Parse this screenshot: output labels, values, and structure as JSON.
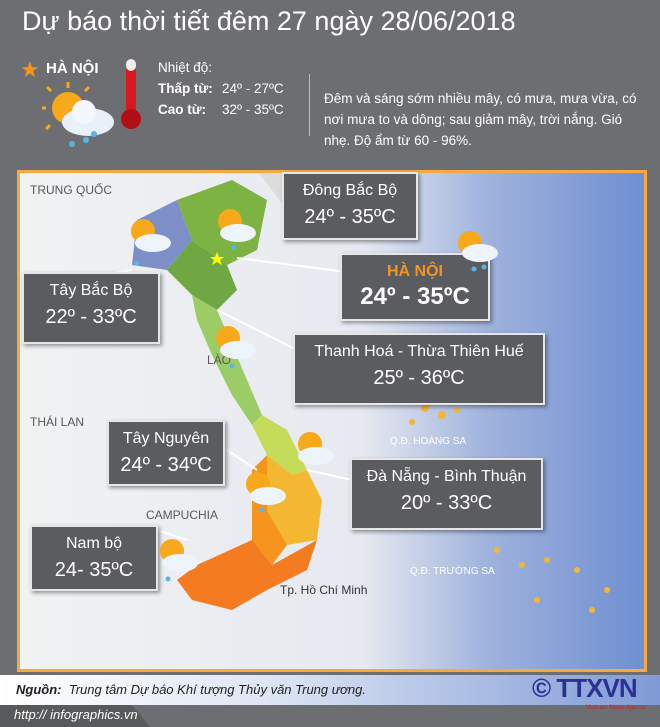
{
  "title": "Dự báo thời tiết đêm 27 ngày 28/06/2018",
  "hanoi_header": {
    "name": "HÀ NỘI",
    "temp_heading": "Nhiệt độ:",
    "low_label": "Thấp từ:",
    "low_value": "24º - 27ºC",
    "high_label": "Cao từ:",
    "high_value": "32º - 35ºC",
    "description": "Đêm và sáng sớm nhiều mây, có mưa, mưa vừa, có nơi mưa to và dông; sau giảm mây, trời nắng. Gió nhẹ. Độ ẩm từ 60 - 96%.",
    "icons": [
      "star-icon",
      "sun-cloud-rain-icon",
      "thermometer-icon"
    ]
  },
  "regions": [
    {
      "name": "Đông Bắc Bộ",
      "temp": "24º - 35ºC"
    },
    {
      "name": "HÀ NỘI",
      "temp": "24º - 35ºC"
    },
    {
      "name": "Tây Bắc Bộ",
      "temp": "22º - 33ºC"
    },
    {
      "name": "Thanh Hoá - Thừa Thiên Huế",
      "temp": "25º - 36ºC"
    },
    {
      "name": "Tây Nguyên",
      "temp": "24º - 34ºC"
    },
    {
      "name": "Đà Nẵng - Bình Thuận",
      "temp": "20º - 33ºC"
    },
    {
      "name": "Nam bộ",
      "temp": "24- 35ºC"
    }
  ],
  "map_labels": {
    "china": "TRUNG QUỐC",
    "laos": "LÀO",
    "thailand": "THÁI LAN",
    "cambodia": "CAMPUCHIA",
    "hoang_sa": "Q.Đ. HOÀNG SA",
    "truong_sa": "Q.Đ. TRƯỜNG SA",
    "hcm": "Tp. Hồ Chí Minh"
  },
  "colors": {
    "accent": "#f7941d",
    "background": "#6d6e71",
    "box": "#5b5c5f",
    "sea": "#6f8fd0"
  },
  "footer": {
    "source_label": "Nguồn:",
    "source": "Trung tâm Dự báo Khí tượng Thủy văn Trung ương.",
    "url": "http:// infographics.vn",
    "logo": "© TTXVN",
    "logo_sub": "Vietnam News Agency"
  }
}
